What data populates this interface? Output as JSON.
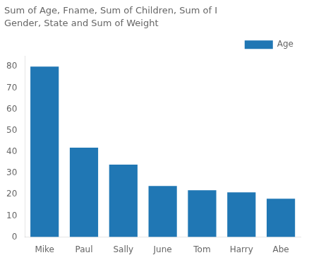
{
  "chart_data": {
    "type": "bar",
    "title": "Sum of Age, Fname, Sum of Children, Sum of I",
    "subtitle": "Gender, State and Sum of Weight",
    "categories": [
      "Mike",
      "Paul",
      "Sally",
      "June",
      "Tom",
      "Harry",
      "Abe"
    ],
    "series": [
      {
        "name": "Age",
        "color": "#2077b4",
        "values": [
          80,
          42,
          34,
          24,
          22,
          21,
          18
        ]
      }
    ],
    "ylim": [
      0,
      85
    ],
    "yticks": [
      0,
      10,
      20,
      30,
      40,
      50,
      60,
      70,
      80
    ],
    "grid": false,
    "legend": "upper right"
  }
}
